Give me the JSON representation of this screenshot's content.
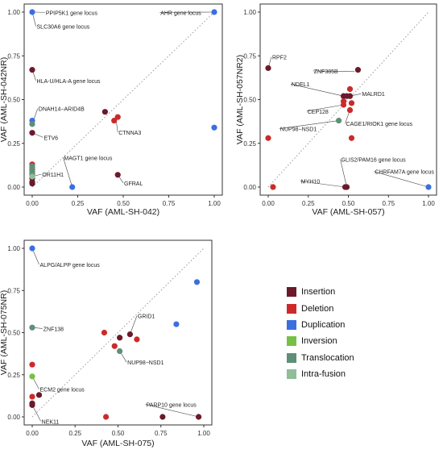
{
  "legend": [
    {
      "name": "Insertion",
      "color": "#6b1a2a"
    },
    {
      "name": "Deletion",
      "color": "#cc2a2a"
    },
    {
      "name": "Duplication",
      "color": "#3b6fe0"
    },
    {
      "name": "Inversion",
      "color": "#77c046"
    },
    {
      "name": "Translocation",
      "color": "#5f8f78"
    },
    {
      "name": "Intra-fusion",
      "color": "#8fbe97"
    }
  ],
  "chart_data": [
    {
      "type": "scatter",
      "xlabel": "VAF (AML-SH-042)",
      "ylabel": "VAF (AML-SH-042NR)",
      "xlim": [
        0,
        1
      ],
      "ylim": [
        0,
        1
      ],
      "xticks": [
        "0.00",
        "0.25",
        "0.50",
        "0.75",
        "1.00"
      ],
      "yticks": [
        "0.00",
        "0.25",
        "0.50",
        "0.75",
        "1.00"
      ],
      "points": [
        {
          "x": 0.0,
          "y": 1.0,
          "t": "Duplication"
        },
        {
          "x": 1.0,
          "y": 1.0,
          "t": "Duplication"
        },
        {
          "x": 1.0,
          "y": 0.34,
          "t": "Duplication"
        },
        {
          "x": 0.22,
          "y": 0.0,
          "t": "Duplication"
        },
        {
          "x": 0.0,
          "y": 0.67,
          "t": "Insertion"
        },
        {
          "x": 0.0,
          "y": 0.31,
          "t": "Insertion"
        },
        {
          "x": 0.4,
          "y": 0.43,
          "t": "Insertion"
        },
        {
          "x": 0.47,
          "y": 0.07,
          "t": "Insertion"
        },
        {
          "x": 0.0,
          "y": 0.05,
          "t": "Insertion"
        },
        {
          "x": 0.0,
          "y": 0.03,
          "t": "Insertion"
        },
        {
          "x": 0.0,
          "y": 0.02,
          "t": "Insertion"
        },
        {
          "x": 0.45,
          "y": 0.38,
          "t": "Deletion"
        },
        {
          "x": 0.47,
          "y": 0.4,
          "t": "Deletion"
        },
        {
          "x": 0.0,
          "y": 0.13,
          "t": "Deletion"
        },
        {
          "x": 0.0,
          "y": 0.1,
          "t": "Deletion"
        },
        {
          "x": 0.0,
          "y": 0.07,
          "t": "Deletion"
        },
        {
          "x": 0.0,
          "y": 0.38,
          "t": "Duplication"
        },
        {
          "x": 0.0,
          "y": 0.36,
          "t": "Translocation"
        },
        {
          "x": 0.0,
          "y": 0.12,
          "t": "Translocation"
        },
        {
          "x": 0.0,
          "y": 0.11,
          "t": "Translocation"
        },
        {
          "x": 0.0,
          "y": 0.09,
          "t": "Translocation"
        },
        {
          "x": 0.0,
          "y": 0.08,
          "t": "Translocation"
        },
        {
          "x": 0.0,
          "y": 0.06,
          "t": "Intra-fusion"
        }
      ],
      "annotations": [
        {
          "text": "PPIP5K1 gene locus",
          "x": 0.0,
          "y": 1.0,
          "lx": 0.07,
          "ly": 0.985
        },
        {
          "text": "SLC30A6 gene locus",
          "x": 0.0,
          "y": 1.0,
          "lx": 0.02,
          "ly": 0.905
        },
        {
          "text": "AHR gene locus",
          "x": 1.0,
          "y": 1.0,
          "lx": 0.7,
          "ly": 0.985
        },
        {
          "text": "HLA-U/HLA-A gene locus",
          "x": 0.0,
          "y": 0.67,
          "lx": 0.02,
          "ly": 0.595
        },
        {
          "text": "DNAH14−ARID4B",
          "x": 0.0,
          "y": 0.36,
          "lx": 0.03,
          "ly": 0.435
        },
        {
          "text": "ETV6",
          "x": 0.0,
          "y": 0.31,
          "lx": 0.06,
          "ly": 0.27
        },
        {
          "text": "CTNNA3",
          "x": 0.46,
          "y": 0.39,
          "lx": 0.47,
          "ly": 0.3
        },
        {
          "text": "MAGT1 gene locus",
          "x": 0.22,
          "y": 0.0,
          "lx": 0.17,
          "ly": 0.155
        },
        {
          "text": "OR11H1",
          "x": 0.0,
          "y": 0.06,
          "lx": 0.05,
          "ly": 0.06
        },
        {
          "text": "GFRAL",
          "x": 0.47,
          "y": 0.07,
          "lx": 0.5,
          "ly": 0.01
        }
      ]
    },
    {
      "type": "scatter",
      "xlabel": "VAF (AML-SH-057)",
      "ylabel": "VAF (AML-SH-057NR2)",
      "xlim": [
        0,
        1
      ],
      "ylim": [
        0,
        1
      ],
      "xticks": [
        "0.00",
        "0.25",
        "0.50",
        "0.75",
        "1.00"
      ],
      "yticks": [
        "0.00",
        "0.25",
        "0.50",
        "0.75",
        "1.00"
      ],
      "points": [
        {
          "x": 0.0,
          "y": 0.68,
          "t": "Insertion"
        },
        {
          "x": 0.56,
          "y": 0.67,
          "t": "Insertion"
        },
        {
          "x": 0.47,
          "y": 0.52,
          "t": "Insertion"
        },
        {
          "x": 0.49,
          "y": 0.52,
          "t": "Insertion"
        },
        {
          "x": 0.51,
          "y": 0.52,
          "t": "Insertion"
        },
        {
          "x": 0.48,
          "y": 0.0,
          "t": "Insertion"
        },
        {
          "x": 0.49,
          "y": 0.0,
          "t": "Insertion"
        },
        {
          "x": 0.0,
          "y": 0.28,
          "t": "Deletion"
        },
        {
          "x": 0.03,
          "y": 0.0,
          "t": "Deletion"
        },
        {
          "x": 0.51,
          "y": 0.56,
          "t": "Deletion"
        },
        {
          "x": 0.47,
          "y": 0.49,
          "t": "Deletion"
        },
        {
          "x": 0.52,
          "y": 0.48,
          "t": "Deletion"
        },
        {
          "x": 0.47,
          "y": 0.47,
          "t": "Deletion"
        },
        {
          "x": 0.51,
          "y": 0.44,
          "t": "Deletion"
        },
        {
          "x": 0.52,
          "y": 0.28,
          "t": "Deletion"
        },
        {
          "x": 0.44,
          "y": 0.38,
          "t": "Translocation"
        },
        {
          "x": 1.0,
          "y": 0.0,
          "t": "Duplication"
        }
      ],
      "annotations": [
        {
          "text": "RPF2",
          "x": 0.0,
          "y": 0.68,
          "lx": 0.02,
          "ly": 0.73
        },
        {
          "text": "ZNF385B",
          "x": 0.54,
          "y": 0.66,
          "lx": 0.28,
          "ly": 0.65
        },
        {
          "text": "NDEL1",
          "x": 0.47,
          "y": 0.52,
          "lx": 0.14,
          "ly": 0.575
        },
        {
          "text": "MALRD1",
          "x": 0.51,
          "y": 0.52,
          "lx": 0.58,
          "ly": 0.52
        },
        {
          "text": "CEP128",
          "x": 0.47,
          "y": 0.47,
          "lx": 0.24,
          "ly": 0.42
        },
        {
          "text": "CAGE1/RIOK1 gene locus",
          "x": 0.51,
          "y": 0.44,
          "lx": 0.48,
          "ly": 0.35
        },
        {
          "text": "NUP98−NSD1",
          "x": 0.44,
          "y": 0.38,
          "lx": 0.07,
          "ly": 0.32
        },
        {
          "text": "GLIS2/PAM16 gene locus",
          "x": 0.49,
          "y": 0.0,
          "lx": 0.45,
          "ly": 0.145
        },
        {
          "text": "CHRFAM7A gene locus",
          "x": 1.0,
          "y": 0.0,
          "lx": 0.66,
          "ly": 0.075
        },
        {
          "text": "MYH10",
          "x": 0.48,
          "y": 0.0,
          "lx": 0.2,
          "ly": 0.02
        }
      ]
    },
    {
      "type": "scatter",
      "xlabel": "VAF (AML-SH-075)",
      "ylabel": "VAF (AML-SH-075NR)",
      "xlim": [
        0,
        1
      ],
      "ylim": [
        0,
        1
      ],
      "xticks": [
        "0.00",
        "0.25",
        "0.50",
        "0.75",
        "1.00"
      ],
      "yticks": [
        "0.00",
        "0.25",
        "0.50",
        "0.75",
        "1.00"
      ],
      "points": [
        {
          "x": 0.0,
          "y": 1.0,
          "t": "Duplication"
        },
        {
          "x": 0.96,
          "y": 0.8,
          "t": "Duplication"
        },
        {
          "x": 0.84,
          "y": 0.55,
          "t": "Duplication"
        },
        {
          "x": 0.0,
          "y": 0.53,
          "t": "Translocation"
        },
        {
          "x": 0.51,
          "y": 0.39,
          "t": "Translocation"
        },
        {
          "x": 0.0,
          "y": 0.24,
          "t": "Inversion"
        },
        {
          "x": 0.0,
          "y": 0.31,
          "t": "Deletion"
        },
        {
          "x": 0.42,
          "y": 0.5,
          "t": "Deletion"
        },
        {
          "x": 0.61,
          "y": 0.46,
          "t": "Deletion"
        },
        {
          "x": 0.48,
          "y": 0.42,
          "t": "Deletion"
        },
        {
          "x": 0.0,
          "y": 0.12,
          "t": "Deletion"
        },
        {
          "x": 0.43,
          "y": 0.0,
          "t": "Deletion"
        },
        {
          "x": 0.57,
          "y": 0.49,
          "t": "Insertion"
        },
        {
          "x": 0.51,
          "y": 0.47,
          "t": "Insertion"
        },
        {
          "x": 0.04,
          "y": 0.13,
          "t": "Insertion"
        },
        {
          "x": 0.0,
          "y": 0.08,
          "t": "Insertion"
        },
        {
          "x": 0.0,
          "y": 0.07,
          "t": "Insertion"
        },
        {
          "x": 0.76,
          "y": 0.0,
          "t": "Insertion"
        },
        {
          "x": 0.97,
          "y": 0.0,
          "t": "Insertion"
        }
      ],
      "annotations": [
        {
          "text": "ALPG/ALPP gene locus",
          "x": 0.0,
          "y": 1.0,
          "lx": 0.04,
          "ly": 0.89
        },
        {
          "text": "ZNF138",
          "x": 0.0,
          "y": 0.53,
          "lx": 0.06,
          "ly": 0.51
        },
        {
          "text": "GRID1",
          "x": 0.57,
          "y": 0.49,
          "lx": 0.61,
          "ly": 0.585
        },
        {
          "text": "NUP98−NSD1",
          "x": 0.51,
          "y": 0.39,
          "lx": 0.55,
          "ly": 0.31
        },
        {
          "text": "ECM2 gene locus",
          "x": 0.0,
          "y": 0.24,
          "lx": 0.04,
          "ly": 0.15
        },
        {
          "text": "NEK11",
          "x": 0.0,
          "y": 0.07,
          "lx": 0.05,
          "ly": -0.04
        },
        {
          "text": "PARP10 gene locus",
          "x": 0.97,
          "y": 0.0,
          "lx": 0.66,
          "ly": 0.06
        }
      ]
    }
  ]
}
